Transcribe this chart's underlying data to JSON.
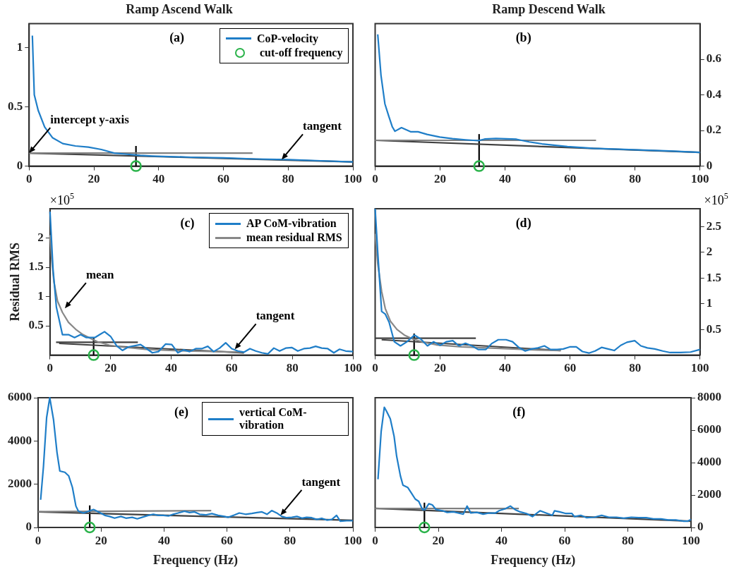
{
  "chart_data": [
    {
      "type": "line",
      "title": "Ramp Ascend Walk",
      "subtitle": "(a)",
      "xlim": [
        0,
        100
      ],
      "xticks": [
        0,
        20,
        40,
        60,
        80,
        100
      ],
      "ylim": [
        0,
        1.2
      ],
      "yticks": [
        0,
        0.5,
        1
      ],
      "legend": "top right",
      "annotations": [
        {
          "text": "intercept y-axis",
          "x": 0,
          "y": 0.11
        },
        {
          "text": "tangent",
          "x": 78,
          "y": 0.055
        }
      ],
      "series": [
        {
          "name": "CoP-velocity",
          "color": "#1f7ec8",
          "x": [
            1,
            1.6,
            2.8,
            4.8,
            7.2,
            10.4,
            14.3,
            18.3,
            22.3,
            26.3,
            30.3,
            34.3,
            38,
            50,
            60,
            70,
            80,
            90,
            100
          ],
          "values": [
            1.1,
            0.6,
            0.47,
            0.33,
            0.24,
            0.19,
            0.17,
            0.16,
            0.14,
            0.11,
            0.1,
            0.09,
            0.085,
            0.075,
            0.07,
            0.06,
            0.055,
            0.045,
            0.035
          ]
        },
        {
          "type": "line",
          "color": "#808080",
          "x": [
            0,
            69
          ],
          "values": [
            0.11,
            0.11
          ]
        },
        {
          "type": "line",
          "color": "#404040",
          "x": [
            0,
            100
          ],
          "values": [
            0.11,
            0.035
          ]
        },
        {
          "type": "line",
          "color": "#000000",
          "x": [
            33,
            33
          ],
          "values": [
            0,
            0.17
          ]
        },
        {
          "name": "cut-off frequency",
          "type": "scatter",
          "marker": "circle",
          "color": "#2ab34a",
          "x": [
            33
          ],
          "values": [
            0
          ]
        }
      ]
    },
    {
      "type": "line",
      "title": "Ramp Descend Walk",
      "subtitle": "(b)",
      "xlim": [
        0,
        100
      ],
      "xticks": [
        0,
        20,
        40,
        60,
        80,
        100
      ],
      "y2lim": [
        0,
        0.8
      ],
      "y2ticks": [
        0,
        0.2,
        0.4,
        0.6
      ],
      "series": [
        {
          "axis": "y2",
          "color": "#1f7ec8",
          "x": [
            0.8,
            1.8,
            3,
            4.2,
            5.3,
            6.1,
            8.1,
            10.9,
            13.2,
            16,
            19.9,
            23.8,
            27.8,
            31.7,
            33.7,
            37.2,
            43.5,
            47.4,
            51.4,
            59.2,
            67.1,
            75,
            82.8,
            90.7,
            100
          ],
          "values": [
            0.74,
            0.51,
            0.35,
            0.28,
            0.22,
            0.196,
            0.216,
            0.193,
            0.193,
            0.178,
            0.163,
            0.154,
            0.148,
            0.143,
            0.152,
            0.155,
            0.151,
            0.136,
            0.125,
            0.11,
            0.1,
            0.095,
            0.09,
            0.085,
            0.077
          ]
        },
        {
          "axis": "y2",
          "type": "line",
          "color": "#808080",
          "x": [
            0,
            68
          ],
          "values": [
            0.145,
            0.145
          ]
        },
        {
          "axis": "y2",
          "type": "line",
          "color": "#404040",
          "x": [
            0,
            100
          ],
          "values": [
            0.145,
            0.077
          ]
        },
        {
          "axis": "y2",
          "type": "line",
          "color": "#000000",
          "x": [
            32,
            32
          ],
          "values": [
            0,
            0.18
          ]
        },
        {
          "axis": "y2",
          "type": "scatter",
          "marker": "circle",
          "color": "#2ab34a",
          "x": [
            32
          ],
          "values": [
            0
          ]
        }
      ]
    },
    {
      "type": "line",
      "subtitle": "(c)",
      "ylabel": "Residual RMS",
      "xlim": [
        0,
        100
      ],
      "xticks": [
        0,
        20,
        40,
        60,
        80,
        100
      ],
      "ylim": [
        0,
        2.5
      ],
      "yticks": [
        0.5,
        1,
        1.5,
        2
      ],
      "legend": "top right",
      "annotations": [
        "×10$^{5}$",
        {
          "text": "mean",
          "x": 4.9,
          "y": 0.8
        },
        {
          "text": "tangent",
          "x": 61,
          "y": 0.1
        }
      ],
      "series": [
        {
          "name": "AP CoM-vibration",
          "color": "#1f7ec8",
          "x": [
            0,
            1,
            2.1,
            4.1,
            6.1,
            8.1,
            10.1,
            12,
            14.8,
            16.4,
            18,
            20,
            22,
            23.9,
            25.9,
            29.9,
            33.8,
            35.8,
            38.2,
            40.2,
            42.2,
            44.1,
            46.1,
            48.1,
            50.1,
            52.1,
            54,
            56,
            58,
            60,
            62,
            64,
            66,
            67.9,
            69.9,
            71.9,
            73.9,
            75.8,
            77.8,
            79.8,
            81.8,
            83.8,
            85.8,
            87.7,
            89.7,
            91.7,
            93.7,
            95.6,
            97.6,
            100
          ],
          "values": [
            2.45,
            1.47,
            0.82,
            0.35,
            0.35,
            0.3,
            0.35,
            0.3,
            0.3,
            0.35,
            0.4,
            0.32,
            0.16,
            0.08,
            0.14,
            0.18,
            0.04,
            0.06,
            0.19,
            0.18,
            0.04,
            0.09,
            0.06,
            0.11,
            0.11,
            0.15,
            0.06,
            0.12,
            0.21,
            0.11,
            0.07,
            0.05,
            0.11,
            0.07,
            0.04,
            0.02,
            0.12,
            0.07,
            0.12,
            0.13,
            0.07,
            0.11,
            0.12,
            0.15,
            0.12,
            0.11,
            0.04,
            0.1,
            0.07,
            0.06
          ]
        },
        {
          "name": "mean residual RMS",
          "color": "#888888",
          "x": [
            0,
            0.6,
            1.3,
            2.5,
            4.1,
            6.1,
            8.5,
            10.9,
            13.2,
            15.6,
            19.6,
            23.5,
            31.5,
            39.4,
            47.3,
            55.2,
            63.6
          ],
          "values": [
            2.05,
            1.6,
            1.25,
            0.92,
            0.73,
            0.56,
            0.44,
            0.35,
            0.29,
            0.23,
            0.17,
            0.14,
            0.1,
            0.08,
            0.07,
            0.06,
            0.05
          ]
        },
        {
          "type": "line",
          "color": "#404040",
          "x": [
            2,
            29
          ],
          "values": [
            0.22,
            0.22
          ]
        },
        {
          "type": "line",
          "color": "#404040",
          "x": [
            3,
            64
          ],
          "values": [
            0.2,
            0.04
          ]
        },
        {
          "type": "line",
          "color": "#000000",
          "x": [
            14.4,
            14.4
          ],
          "values": [
            0,
            0.3
          ]
        },
        {
          "type": "scatter",
          "marker": "circle",
          "color": "#2ab34a",
          "x": [
            14.4
          ],
          "values": [
            0
          ]
        }
      ]
    },
    {
      "type": "line",
      "subtitle": "(d)",
      "xlim": [
        0,
        100
      ],
      "xticks": [
        0,
        20,
        40,
        60,
        80,
        100
      ],
      "y2lim": [
        0,
        2.85
      ],
      "y2ticks": [
        0.5,
        1,
        1.5,
        2,
        2.5
      ],
      "annotations": [
        "×10$^{5}$"
      ],
      "series": [
        {
          "axis": "y2",
          "color": "#1f7ec8",
          "x": [
            0,
            0.8,
            2,
            3.1,
            4.3,
            5.9,
            7.8,
            9.8,
            12.1,
            14.1,
            16.1,
            18,
            20,
            21.9,
            23.9,
            25.8,
            27.8,
            29.8,
            31.7,
            34.1,
            36,
            37.9,
            40.3,
            42.3,
            44.2,
            46.2,
            48.2,
            50.1,
            52.1,
            54,
            56,
            57.9,
            59.9,
            61.9,
            63.8,
            65.8,
            67.7,
            69.7,
            71.7,
            73.6,
            75.6,
            77.5,
            79.9,
            81.8,
            83.8,
            86.1,
            88.5,
            90.8,
            94,
            97.1,
            100
          ],
          "values": [
            2.85,
            2,
            0.85,
            0.8,
            0.64,
            0.26,
            0.18,
            0.26,
            0.39,
            0.31,
            0.18,
            0.26,
            0.19,
            0.26,
            0.28,
            0.18,
            0.23,
            0.18,
            0.11,
            0.11,
            0.23,
            0.3,
            0.3,
            0.26,
            0.15,
            0.08,
            0.12,
            0.14,
            0.18,
            0.11,
            0.11,
            0.12,
            0.16,
            0.16,
            0.07,
            0.04,
            0.08,
            0.15,
            0.12,
            0.09,
            0.19,
            0.25,
            0.28,
            0.18,
            0.14,
            0.12,
            0.08,
            0.05,
            0.05,
            0.06,
            0.11
          ]
        },
        {
          "axis": "y2",
          "color": "#888888",
          "x": [
            0,
            0.8,
            2,
            3.1,
            4.7,
            6.7,
            9,
            11.7,
            14.9,
            18.8,
            26.6,
            34.5,
            42.3,
            50.1,
            57.2
          ],
          "values": [
            2.36,
            1.78,
            1.24,
            0.91,
            0.66,
            0.5,
            0.39,
            0.31,
            0.25,
            0.2,
            0.16,
            0.14,
            0.12,
            0.1,
            0.09
          ]
        },
        {
          "axis": "y2",
          "type": "line",
          "color": "#404040",
          "x": [
            0,
            31
          ],
          "values": [
            0.33,
            0.33
          ]
        },
        {
          "axis": "y2",
          "type": "line",
          "color": "#404040",
          "x": [
            2,
            57
          ],
          "values": [
            0.3,
            0.09
          ]
        },
        {
          "axis": "y2",
          "type": "line",
          "color": "#000000",
          "x": [
            12,
            12
          ],
          "values": [
            0,
            0.42
          ]
        },
        {
          "axis": "y2",
          "type": "scatter",
          "marker": "circle",
          "color": "#2ab34a",
          "x": [
            12
          ],
          "values": [
            0
          ]
        }
      ]
    },
    {
      "type": "line",
      "subtitle": "(e)",
      "xlabel": "Frequency (Hz)",
      "xlim": [
        0,
        100
      ],
      "xticks": [
        0,
        20,
        40,
        60,
        80,
        100
      ],
      "ylim": [
        0,
        6000
      ],
      "yticks": [
        0,
        2000,
        4000,
        6000
      ],
      "legend": "top right",
      "annotations": [
        {
          "text": "tangent",
          "x": 77,
          "y": 560
        }
      ],
      "series": [
        {
          "name": "vertical CoM-vibration",
          "color": "#1f7ec8",
          "x": [
            0.8,
            1.7,
            2.7,
            3.7,
            4.9,
            6,
            6.9,
            8.5,
            9.7,
            10.9,
            12,
            12.8,
            14.4,
            16,
            17.6,
            19.2,
            21.2,
            22.7,
            24.3,
            26.3,
            27.9,
            29.9,
            31.5,
            33,
            35,
            36.6,
            38.2,
            39.8,
            41.4,
            42.9,
            44.5,
            46.5,
            48.1,
            49.7,
            51.3,
            53.2,
            55.2,
            57.2,
            59.2,
            60.4,
            62.4,
            63.9,
            65.9,
            67.9,
            69.5,
            71.1,
            72.7,
            74.2,
            75.8,
            77.4,
            79,
            80.6,
            82.2,
            83.8,
            85.3,
            86.9,
            88.5,
            90.1,
            91.7,
            93.3,
            94.8,
            96,
            98,
            100
          ],
          "values": [
            1280,
            2820,
            5080,
            6000,
            4980,
            3470,
            2610,
            2550,
            2390,
            1850,
            990,
            750,
            670,
            750,
            830,
            720,
            560,
            510,
            430,
            510,
            430,
            470,
            400,
            470,
            560,
            610,
            560,
            560,
            530,
            610,
            670,
            750,
            690,
            720,
            610,
            580,
            640,
            560,
            510,
            470,
            580,
            670,
            610,
            650,
            690,
            720,
            610,
            780,
            670,
            510,
            450,
            470,
            510,
            430,
            470,
            450,
            370,
            420,
            340,
            370,
            560,
            290,
            310,
            310
          ]
        },
        {
          "type": "line",
          "color": "#808080",
          "x": [
            0,
            55
          ],
          "values": [
            730,
            780
          ]
        },
        {
          "type": "line",
          "color": "#404040",
          "x": [
            0,
            100
          ],
          "values": [
            720,
            330
          ]
        },
        {
          "type": "line",
          "color": "#000000",
          "x": [
            16.4,
            16.4
          ],
          "values": [
            0,
            1020
          ]
        },
        {
          "type": "scatter",
          "marker": "circle",
          "color": "#2ab34a",
          "x": [
            16.4
          ],
          "values": [
            0
          ]
        }
      ]
    },
    {
      "type": "line",
      "subtitle": "(f)",
      "xlabel": "Frequency (Hz)",
      "xlim": [
        0,
        100
      ],
      "xticks": [
        0,
        20,
        40,
        60,
        80,
        100
      ],
      "y2lim": [
        0,
        8000
      ],
      "y2ticks": [
        0,
        2000,
        4000,
        6000,
        8000
      ],
      "series": [
        {
          "axis": "y2",
          "color": "#1f7ec8",
          "x": [
            0.9,
            1.9,
            2.9,
            3.7,
            4.8,
            6,
            6.8,
            8,
            8.8,
            10.3,
            11.5,
            12.7,
            13.8,
            15,
            15.8,
            17,
            18.1,
            19.3,
            21.3,
            22.8,
            24.8,
            26.3,
            27.9,
            29.1,
            30.3,
            32.2,
            34.2,
            36.1,
            38.1,
            39.2,
            41.2,
            42.8,
            44.3,
            45.9,
            47.9,
            49.8,
            52.2,
            54.1,
            56.1,
            56.8,
            58.4,
            60.4,
            62.3,
            63.1,
            65.1,
            67,
            69.4,
            71.7,
            74,
            76.4,
            78.7,
            81.1,
            83.4,
            85.8,
            88.1,
            90.5,
            92.8,
            95.2,
            97.5,
            99,
            100
          ],
          "values": [
            2970,
            5910,
            7410,
            7130,
            6700,
            5620,
            4400,
            3180,
            2610,
            2470,
            2110,
            1750,
            1610,
            1100,
            1100,
            1460,
            1390,
            1100,
            1030,
            930,
            960,
            890,
            820,
            1320,
            890,
            930,
            820,
            890,
            890,
            1030,
            1150,
            1320,
            1100,
            960,
            860,
            670,
            1030,
            890,
            750,
            1030,
            960,
            860,
            860,
            670,
            750,
            600,
            630,
            750,
            630,
            630,
            570,
            630,
            600,
            600,
            530,
            530,
            460,
            460,
            390,
            390,
            490
          ]
        },
        {
          "axis": "y2",
          "type": "line",
          "color": "#808080",
          "x": [
            0,
            45.5
          ],
          "values": [
            1170,
            1170
          ]
        },
        {
          "axis": "y2",
          "type": "line",
          "color": "#404040",
          "x": [
            0,
            100
          ],
          "values": [
            1180,
            390
          ]
        },
        {
          "axis": "y2",
          "type": "line",
          "color": "#000000",
          "x": [
            15.6,
            15.6
          ],
          "values": [
            0,
            1530
          ]
        },
        {
          "axis": "y2",
          "type": "scatter",
          "marker": "circle",
          "color": "#2ab34a",
          "x": [
            15.6
          ],
          "values": [
            0
          ]
        }
      ]
    }
  ]
}
